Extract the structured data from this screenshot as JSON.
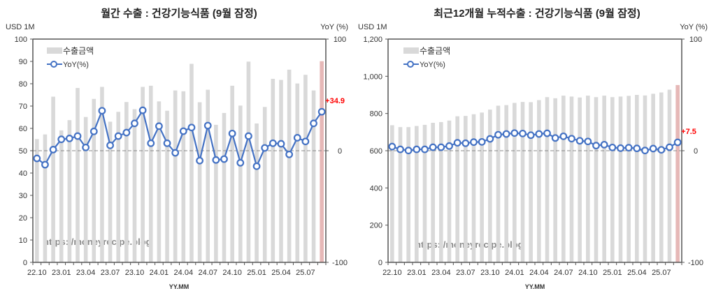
{
  "chart_data": [
    {
      "type": "bar+line",
      "title": "월간 수출 : 건강기능식품 (9월 잠정)",
      "ylabel_left": "USD 1M",
      "ylabel_right": "YoY (%)",
      "xlabel": "YY.MM",
      "watermark": "https://moneyrecipe.blog",
      "ylim_left": [
        0,
        100
      ],
      "yticks_left": [
        "0",
        "10",
        "20",
        "30",
        "40",
        "50",
        "60",
        "70",
        "80",
        "90",
        "100"
      ],
      "ylim_right": [
        -100,
        100
      ],
      "yticks_right": [
        "-100",
        "0",
        "100"
      ],
      "xtick_labels": [
        "22.10",
        "23.01",
        "23.04",
        "23.07",
        "23.10",
        "24.01",
        "24.04",
        "24.07",
        "24.10",
        "25.01",
        "25.04",
        "25.07"
      ],
      "legend": {
        "bar": "수출금액",
        "line": "YoY(%)",
        "position": "top-left"
      },
      "annotation": "+34.9",
      "colors": {
        "bar": "#d9d9d9",
        "bar_last": "#e6b8b7",
        "line": "#4472c4",
        "annotation": "#ff0000"
      },
      "series": [
        {
          "name": "수출금액",
          "axis": "left",
          "values": [
            55.2,
            57.3,
            74.2,
            59.1,
            63.7,
            78.1,
            65.1,
            73.2,
            78.6,
            63.0,
            67.4,
            71.8,
            68.6,
            78.6,
            79.1,
            72.1,
            67.9,
            77.0,
            76.6,
            88.9,
            71.7,
            77.3,
            61.6,
            66.9,
            79.1,
            70.2,
            89.9,
            62.2,
            69.6,
            82.2,
            81.7,
            86.3,
            80.1,
            84.0,
            77.0,
            90.1
          ]
        },
        {
          "name": "YoY(%)",
          "axis": "right",
          "values": [
            -6.9,
            -12.5,
            1.0,
            10.2,
            11.0,
            13.1,
            2.9,
            17.3,
            35.8,
            4.8,
            13.1,
            16.2,
            24.5,
            36.2,
            6.7,
            22.0,
            6.7,
            -1.9,
            17.5,
            20.8,
            -8.9,
            22.5,
            -8.3,
            -7.5,
            15.4,
            -10.8,
            13.1,
            -13.9,
            2.5,
            6.7,
            6.2,
            -3.3,
            11.6,
            8.3,
            24.5,
            34.9
          ]
        }
      ]
    },
    {
      "type": "bar+line",
      "title": "최근12개월 누적수출 : 건강기능식품 (9월 잠정)",
      "ylabel_left": "USD 1M",
      "ylabel_right": "YoY (%)",
      "xlabel": "YY.MM",
      "watermark": "https://moneyrecipe.blog",
      "ylim_left": [
        0,
        1200
      ],
      "yticks_left": [
        "0",
        "200",
        "400",
        "600",
        "800",
        "1,000",
        "1,200"
      ],
      "ylim_right": [
        -100,
        100
      ],
      "yticks_right": [
        "-100",
        "0",
        "100"
      ],
      "xtick_labels": [
        "22.10",
        "23.01",
        "23.04",
        "23.07",
        "23.10",
        "24.01",
        "24.04",
        "24.07",
        "24.10",
        "25.01",
        "25.04",
        "25.07"
      ],
      "legend": {
        "bar": "수출금액",
        "line": "YoY(%)",
        "position": "top-left"
      },
      "annotation": "+7.5",
      "colors": {
        "bar": "#d9d9d9",
        "bar_last": "#e6b8b7",
        "line": "#4472c4",
        "annotation": "#ff0000"
      },
      "series": [
        {
          "name": "수출금액",
          "axis": "left",
          "values": [
            737,
            727,
            727,
            733,
            739,
            750,
            754,
            762,
            785,
            787,
            796,
            805,
            821,
            842,
            845,
            857,
            862,
            861,
            872,
            888,
            882,
            896,
            891,
            886,
            896,
            888,
            896,
            888,
            891,
            895,
            900,
            897,
            906,
            913,
            928,
            953
          ]
        },
        {
          "name": "YoY(%)",
          "axis": "right",
          "values": [
            3.7,
            1.2,
            0.2,
            1.2,
            1.2,
            3.1,
            3.1,
            4.2,
            7.1,
            6.7,
            7.7,
            7.9,
            10.6,
            14.3,
            15.0,
            15.8,
            15.4,
            13.9,
            15.0,
            15.6,
            11.4,
            12.9,
            10.8,
            8.9,
            8.3,
            4.6,
            5.4,
            2.9,
            2.3,
            2.7,
            2.1,
            0.2,
            1.9,
            0.8,
            3.1,
            7.5
          ]
        }
      ]
    }
  ]
}
